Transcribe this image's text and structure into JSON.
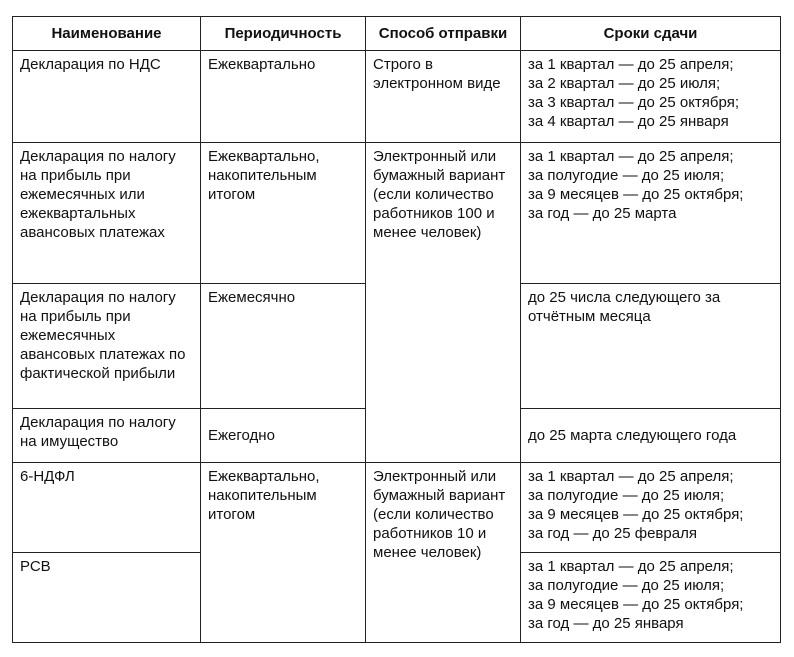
{
  "table": {
    "header": [
      "Наименование",
      "Периодичность",
      "Способ отправки",
      "Сроки сдачи"
    ],
    "rows": [
      {
        "name": "Декларация по НДС",
        "period": "Ежеквартально",
        "method": "Строго в электронном виде",
        "deadline": [
          "за 1 квартал — до 25 апреля;",
          "за 2 квартал — до 25 июля;",
          "за 3 квартал — до 25 октября;",
          "за 4 квартал — до 25 января"
        ]
      },
      {
        "name": "Декларация по налогу на прибыль при ежемесячных или ежеквартальных авансовых платежах",
        "period": "Ежеквартально, накопительным итогом",
        "method": "Электронный или бумажный вариант (если количество работников 100 и менее человек)",
        "deadline": [
          "за 1 квартал — до 25 апреля;",
          "за полугодие — до 25 июля;",
          "за 9 месяцев — до 25 октября;",
          "за год — до 25 марта"
        ]
      },
      {
        "name": "Декларация по налогу на прибыль при ежемесячных авансовых платежах по фактической прибыли",
        "period": "Ежемесячно",
        "deadline": [
          "до 25 числа следующего за отчётным месяца"
        ]
      },
      {
        "name": "Декларация по налогу на имущество",
        "period": "Ежегодно",
        "deadline": [
          "до 25 марта следующего года"
        ]
      },
      {
        "name": "6-НДФЛ",
        "period": "Ежеквартально, накопительным итогом",
        "method": "Электронный или бумажный вариант (если количество работников 10 и менее человек)",
        "deadline": [
          "за 1 квартал — до 25 апреля;",
          "за полугодие — до 25 июля;",
          "за 9 месяцев — до 25 октября;",
          "за год — до 25 февраля"
        ]
      },
      {
        "name": "РСВ",
        "deadline": [
          "за 1 квартал — до 25 апреля;",
          "за полугодие — до 25 июля;",
          "за 9 месяцев — до 25 октября;",
          "за год — до 25 января"
        ]
      }
    ]
  }
}
